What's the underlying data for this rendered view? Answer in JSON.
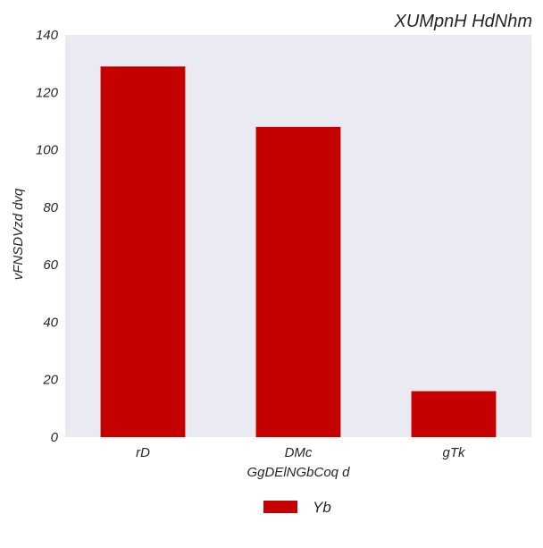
{
  "chart_data": {
    "type": "bar",
    "title": "XUMpnH HdNhm",
    "xlabel": "GgDElNGbCoq  d",
    "ylabel": "vFNSDVzd dvq",
    "categories": [
      "rD",
      "DMc",
      "gTk"
    ],
    "series": [
      {
        "name": "Yb",
        "values": [
          129,
          108,
          16
        ]
      }
    ],
    "ylim": [
      0,
      140
    ],
    "yticks": [
      0,
      20,
      40,
      60,
      80,
      100,
      120,
      140
    ],
    "grid": false,
    "legend_position": "bottom-center",
    "colors": {
      "bar": "#c40000",
      "plot_background": "#eaeaf2",
      "text": "#262626"
    }
  }
}
